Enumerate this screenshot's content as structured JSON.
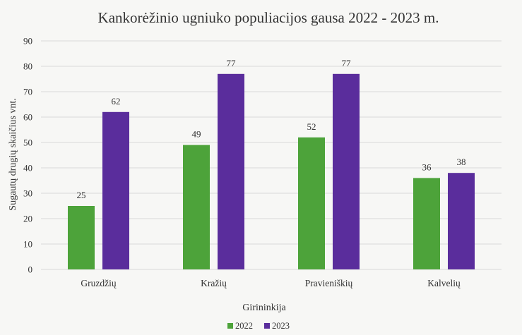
{
  "chart_data": {
    "type": "bar",
    "title": "Kankorėžinio ugniuko populiacijos gausa 2022 - 2023 m.",
    "xlabel": "Girininkija",
    "ylabel": "Sugautų drugių skaičius vnt.",
    "categories": [
      "Gruzdžių",
      "Kražių",
      "Pravieniškių",
      "Kalvelių"
    ],
    "series": [
      {
        "name": "2022",
        "values": [
          25,
          49,
          52,
          36
        ],
        "color": "#4da33a"
      },
      {
        "name": "2023",
        "values": [
          62,
          77,
          77,
          38
        ],
        "color": "#5a2d9c"
      }
    ],
    "ylim": [
      0,
      90
    ],
    "yticks": [
      0,
      10,
      20,
      30,
      40,
      50,
      60,
      70,
      80,
      90
    ],
    "grid": true,
    "legend_position": "bottom"
  }
}
